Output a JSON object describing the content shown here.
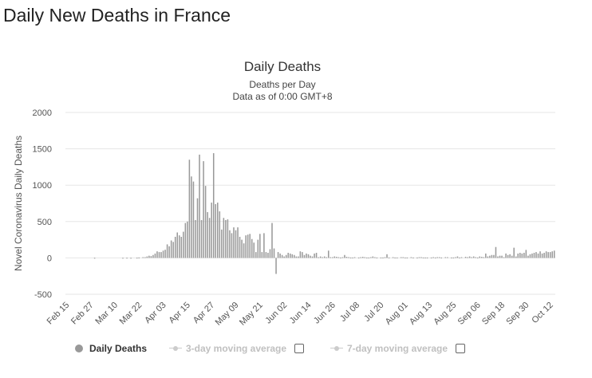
{
  "page": {
    "title": "Daily New Deaths in France"
  },
  "colors": {
    "bar": "#999999",
    "grid": "#e6e6e6",
    "legend_inactive": "#cccccc"
  },
  "legend": {
    "items": [
      {
        "label": "Daily Deaths",
        "active": true,
        "icon": "circle-marker-icon"
      },
      {
        "label": "3-day moving average",
        "active": false,
        "icon": "line-marker-icon",
        "checked": false
      },
      {
        "label": "7-day moving average",
        "active": false,
        "icon": "line-marker-icon",
        "checked": false
      }
    ]
  },
  "chart_data": {
    "type": "bar",
    "title": "Daily Deaths",
    "subtitle": "Deaths per Day",
    "subtitle2": "Data as of 0:00 GMT+8",
    "ylabel": "Novel Coronavirus Daily Deaths",
    "xlabel": "",
    "ylim": [
      -500,
      2000
    ],
    "yticks": [
      -500,
      0,
      500,
      1000,
      1500,
      2000
    ],
    "grid": true,
    "legend_position": "bottom",
    "x_tick_labels": [
      "Feb 15",
      "Feb 27",
      "Mar 10",
      "Mar 22",
      "Apr 03",
      "Apr 15",
      "Apr 27",
      "May 09",
      "May 21",
      "Jun 02",
      "Jun 14",
      "Jun 26",
      "Jul 08",
      "Jul 20",
      "Aug 01",
      "Aug 13",
      "Aug 25",
      "Sep 06",
      "Sep 18",
      "Sep 30",
      "Oct 12"
    ],
    "x_start": "Feb 15",
    "series": [
      {
        "name": "Daily Deaths",
        "values": [
          0,
          0,
          0,
          0,
          0,
          0,
          0,
          0,
          0,
          0,
          0,
          0,
          0,
          0,
          1,
          0,
          0,
          0,
          0,
          0,
          0,
          0,
          0,
          0,
          0,
          0,
          0,
          0,
          1,
          0,
          2,
          0,
          1,
          0,
          0,
          3,
          5,
          0,
          10,
          10,
          20,
          30,
          25,
          40,
          60,
          90,
          80,
          80,
          100,
          112,
          186,
          160,
          240,
          220,
          290,
          350,
          310,
          290,
          360,
          480,
          500,
          1350,
          1120,
          1050,
          520,
          820,
          1420,
          520,
          1330,
          990,
          630,
          550,
          760,
          1440,
          740,
          760,
          640,
          390,
          550,
          520,
          530,
          380,
          340,
          420,
          380,
          420,
          290,
          250,
          200,
          310,
          320,
          330,
          260,
          210,
          80,
          250,
          330,
          80,
          340,
          80,
          70,
          120,
          480,
          130,
          -220,
          80,
          60,
          40,
          20,
          40,
          70,
          60,
          50,
          40,
          20,
          20,
          90,
          80,
          40,
          60,
          50,
          30,
          20,
          60,
          70,
          10,
          20,
          10,
          20,
          10,
          100,
          10,
          10,
          20,
          15,
          10,
          5,
          10,
          40,
          15,
          10,
          5,
          5,
          10,
          0,
          5,
          10,
          15,
          10,
          5,
          5,
          10,
          20,
          10,
          5,
          0,
          5,
          5,
          10,
          50,
          5,
          0,
          10,
          5,
          5,
          0,
          10,
          10,
          5,
          5,
          0,
          10,
          5,
          0,
          5,
          10,
          10,
          5,
          5,
          5,
          0,
          5,
          10,
          5,
          10,
          10,
          5,
          0,
          10,
          10,
          0,
          5,
          5,
          10,
          20,
          5,
          10,
          0,
          15,
          10,
          20,
          10,
          20,
          10,
          5,
          20,
          15,
          10,
          60,
          20,
          30,
          40,
          40,
          150,
          20,
          30,
          30,
          10,
          60,
          40,
          50,
          30,
          140,
          20,
          60,
          70,
          60,
          70,
          110,
          30,
          50,
          60,
          70,
          80,
          60,
          90,
          60,
          70,
          90,
          80,
          80,
          90,
          100
        ]
      }
    ]
  }
}
